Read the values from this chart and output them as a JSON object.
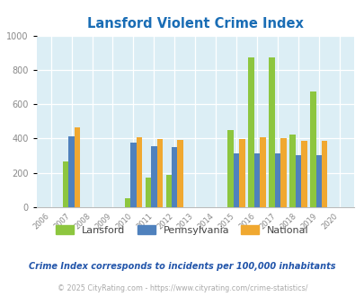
{
  "title": "Lansford Violent Crime Index",
  "subtitle": "Crime Index corresponds to incidents per 100,000 inhabitants",
  "footer": "© 2025 CityRating.com - https://www.cityrating.com/crime-statistics/",
  "years": [
    2006,
    2007,
    2008,
    2009,
    2010,
    2011,
    2012,
    2013,
    2014,
    2015,
    2016,
    2017,
    2018,
    2019,
    2020
  ],
  "lansford": [
    null,
    265,
    null,
    null,
    50,
    175,
    190,
    null,
    null,
    450,
    870,
    875,
    425,
    675,
    null
  ],
  "pennsylvania": [
    null,
    415,
    null,
    null,
    375,
    355,
    350,
    null,
    null,
    315,
    315,
    315,
    305,
    305,
    null
  ],
  "national": [
    null,
    465,
    null,
    null,
    405,
    395,
    390,
    null,
    null,
    395,
    405,
    400,
    385,
    385,
    null
  ],
  "bar_color_lansford": "#8dc63f",
  "bar_color_pennsylvania": "#4f81bd",
  "bar_color_national": "#f0a830",
  "plot_bg_color": "#dceef5",
  "ylim": [
    0,
    1000
  ],
  "yticks": [
    0,
    200,
    400,
    600,
    800,
    1000
  ],
  "title_color": "#1a6db5",
  "subtitle_color": "#2255aa",
  "footer_color": "#aaaaaa",
  "grid_color": "#ffffff",
  "tick_color": "#888888",
  "bar_width": 0.28
}
